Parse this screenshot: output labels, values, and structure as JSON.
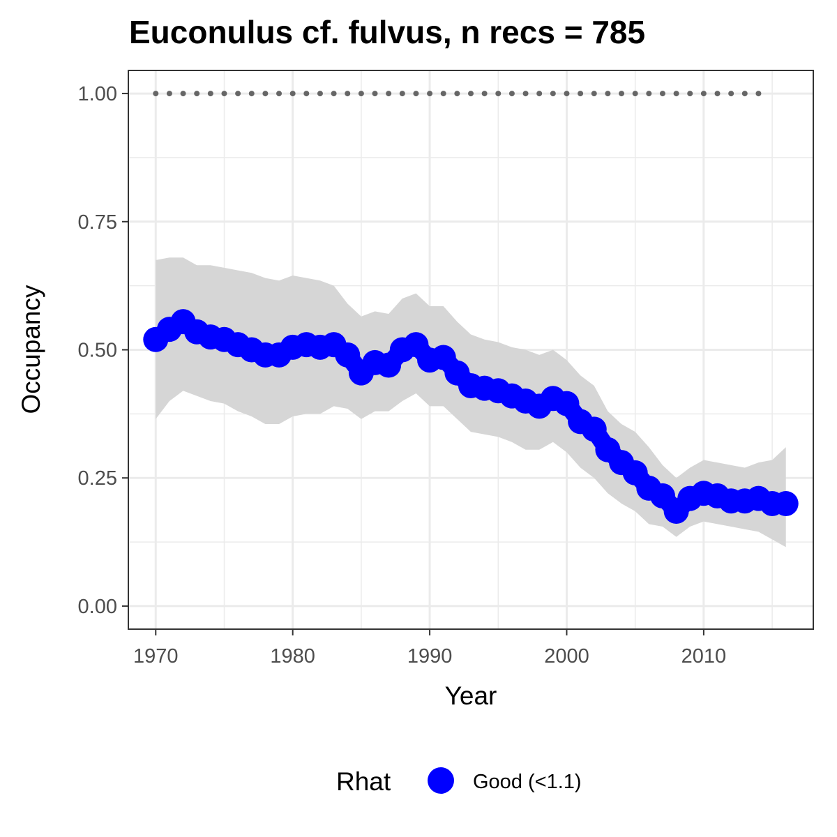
{
  "chart_data": {
    "type": "line",
    "title": "Euconulus cf. fulvus, n recs = 785",
    "xlabel": "Year",
    "ylabel": "Occupancy",
    "xlim": [
      1968,
      2018
    ],
    "ylim": [
      -0.045,
      1.045
    ],
    "x_ticks": [
      1970,
      1980,
      1990,
      2000,
      2010
    ],
    "x_tick_labels": [
      "1970",
      "1980",
      "1990",
      "2000",
      "2010"
    ],
    "y_ticks": [
      0,
      0.25,
      0.5,
      0.75,
      1.0
    ],
    "y_tick_labels": [
      "0.00",
      "0.25",
      "0.50",
      "0.75",
      "1.00"
    ],
    "grid": true,
    "legend": {
      "title": "Rhat",
      "position": "bottom",
      "entries": [
        {
          "label": "Good (<1.1)",
          "color": "#0000ff"
        }
      ]
    },
    "colors": {
      "series": "#0000ff",
      "ribbon": "#d6d6d6",
      "reference": "#666666",
      "grid": "#ebebeb",
      "panel_border": "#333333"
    },
    "x": [
      1970,
      1971,
      1972,
      1973,
      1974,
      1975,
      1976,
      1977,
      1978,
      1979,
      1980,
      1981,
      1982,
      1983,
      1984,
      1985,
      1986,
      1987,
      1988,
      1989,
      1990,
      1991,
      1992,
      1993,
      1994,
      1995,
      1996,
      1997,
      1998,
      1999,
      2000,
      2001,
      2002,
      2003,
      2004,
      2005,
      2006,
      2007,
      2008,
      2009,
      2010,
      2011,
      2012,
      2013,
      2014,
      2015,
      2016
    ],
    "series": [
      {
        "values": [
          0.52,
          0.54,
          0.555,
          0.535,
          0.525,
          0.52,
          0.51,
          0.5,
          0.49,
          0.49,
          0.505,
          0.51,
          0.505,
          0.51,
          0.49,
          0.455,
          0.475,
          0.47,
          0.5,
          0.51,
          0.48,
          0.485,
          0.455,
          0.43,
          0.425,
          0.42,
          0.41,
          0.4,
          0.39,
          0.405,
          0.395,
          0.36,
          0.345,
          0.305,
          0.28,
          0.26,
          0.23,
          0.215,
          0.185,
          0.21,
          0.22,
          0.215,
          0.205,
          0.205,
          0.21,
          0.2,
          0.2
        ],
        "lower": [
          0.365,
          0.4,
          0.42,
          0.41,
          0.4,
          0.395,
          0.38,
          0.37,
          0.355,
          0.355,
          0.37,
          0.375,
          0.375,
          0.39,
          0.385,
          0.365,
          0.38,
          0.38,
          0.4,
          0.415,
          0.39,
          0.39,
          0.365,
          0.34,
          0.335,
          0.33,
          0.32,
          0.305,
          0.305,
          0.32,
          0.3,
          0.27,
          0.25,
          0.22,
          0.2,
          0.185,
          0.16,
          0.155,
          0.135,
          0.155,
          0.165,
          0.16,
          0.155,
          0.15,
          0.145,
          0.13,
          0.115
        ],
        "upper": [
          0.675,
          0.68,
          0.68,
          0.665,
          0.665,
          0.66,
          0.655,
          0.65,
          0.64,
          0.635,
          0.645,
          0.64,
          0.635,
          0.625,
          0.59,
          0.565,
          0.575,
          0.57,
          0.6,
          0.61,
          0.585,
          0.585,
          0.555,
          0.53,
          0.52,
          0.515,
          0.505,
          0.5,
          0.49,
          0.5,
          0.48,
          0.45,
          0.43,
          0.38,
          0.355,
          0.34,
          0.31,
          0.275,
          0.25,
          0.27,
          0.285,
          0.28,
          0.275,
          0.27,
          0.28,
          0.285,
          0.31
        ]
      }
    ],
    "reference_line": {
      "y": 1.0,
      "x_from": 1970,
      "x_to": 2015
    }
  }
}
